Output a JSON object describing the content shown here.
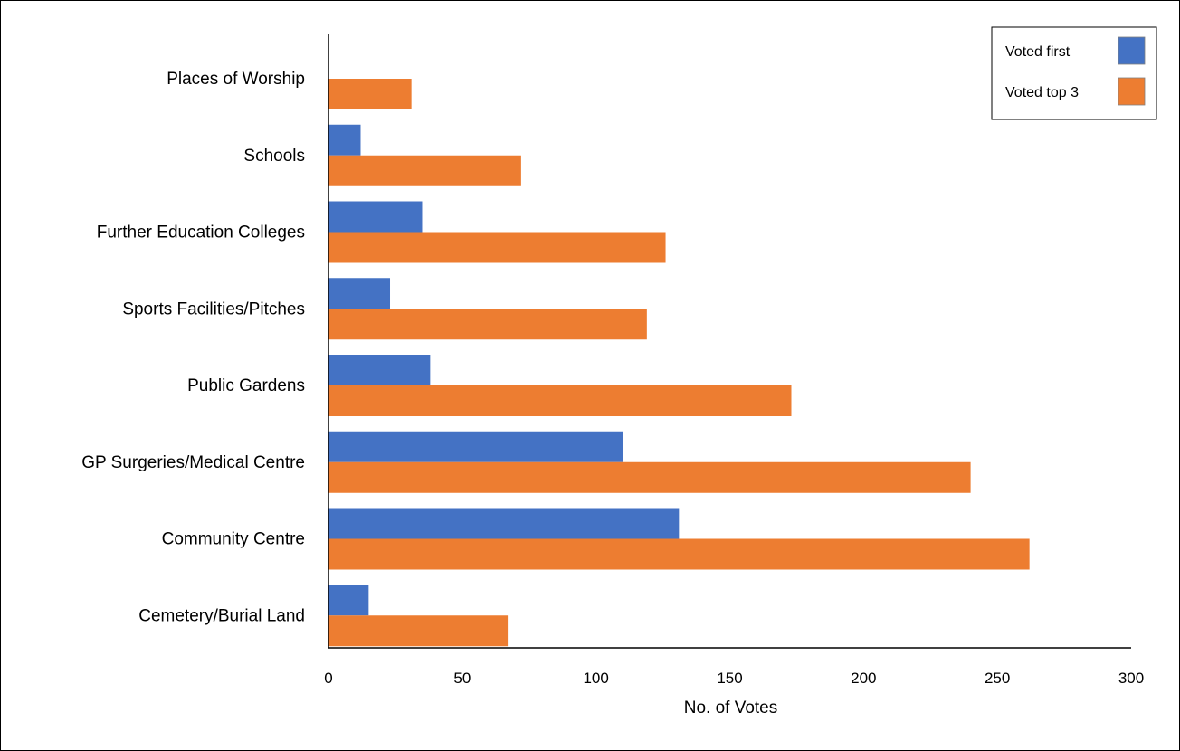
{
  "chart_data": {
    "type": "bar",
    "orientation": "horizontal",
    "categories": [
      "Places of Worship",
      "Schools",
      "Further Education Colleges",
      "Sports Facilities/Pitches",
      "Public Gardens",
      "GP Surgeries/Medical Centre",
      "Community Centre",
      "Cemetery/Burial Land"
    ],
    "series": [
      {
        "name": "Voted first",
        "color": "#4472c4",
        "values": [
          0,
          12,
          35,
          23,
          38,
          110,
          131,
          15
        ]
      },
      {
        "name": "Voted top 3",
        "color": "#ed7d31",
        "values": [
          31,
          72,
          126,
          119,
          173,
          240,
          262,
          67
        ]
      }
    ],
    "xlabel": "No. of Votes",
    "ylabel": "",
    "xlim": [
      0,
      300
    ],
    "xticks": [
      0,
      50,
      100,
      150,
      200,
      250,
      300
    ],
    "grid": false,
    "legend_position": "top-right"
  }
}
